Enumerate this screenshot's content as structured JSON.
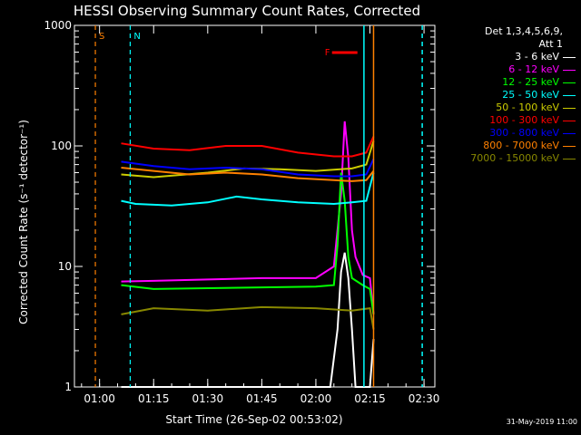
{
  "chart_data": {
    "type": "line",
    "title": "HESSI Observing Summary Count Rates, Corrected",
    "xlabel": "Start Time (26-Sep-02 00:53:02)",
    "ylabel": "Corrected Count Rate (s⁻¹ detector⁻¹)",
    "y_scale": "log",
    "ylim": [
      1,
      1000
    ],
    "y_ticks": [
      1,
      10,
      100,
      1000
    ],
    "y_tick_labels": [
      "1",
      "10",
      "100",
      "1000"
    ],
    "xlim": [
      "00:53:02",
      "02:33:00"
    ],
    "x_tick_labels": [
      "01:00",
      "01:15",
      "01:30",
      "01:45",
      "02:00",
      "02:15",
      "02:30"
    ],
    "legend_title_lines": [
      "Det 1,3,4,5,6,9,",
      "Att 1"
    ],
    "legend_placement": "right",
    "series": [
      {
        "name": "3 - 6 keV",
        "color": "#ffffff",
        "points": [
          [
            "01:06",
            1
          ],
          [
            "01:10",
            1
          ],
          [
            "01:20",
            1
          ],
          [
            "01:30",
            1
          ],
          [
            "01:40",
            1
          ],
          [
            "01:50",
            1
          ],
          [
            "02:00",
            1
          ],
          [
            "02:04",
            1
          ],
          [
            "02:06",
            3
          ],
          [
            "02:07",
            9
          ],
          [
            "02:08",
            13
          ],
          [
            "02:09",
            8
          ],
          [
            "02:10",
            3
          ],
          [
            "02:11",
            1
          ],
          [
            "02:15",
            1
          ],
          [
            "02:16",
            2.5
          ]
        ]
      },
      {
        "name": "6 - 12 keV",
        "color": "#ff00ff",
        "points": [
          [
            "01:06",
            7.5
          ],
          [
            "01:15",
            7.6
          ],
          [
            "01:30",
            7.8
          ],
          [
            "01:45",
            8
          ],
          [
            "02:00",
            8
          ],
          [
            "02:05",
            10
          ],
          [
            "02:07",
            40
          ],
          [
            "02:08",
            160
          ],
          [
            "02:09",
            80
          ],
          [
            "02:10",
            20
          ],
          [
            "02:11",
            12
          ],
          [
            "02:13",
            8.5
          ],
          [
            "02:15",
            8
          ],
          [
            "02:16",
            4
          ]
        ]
      },
      {
        "name": "12 - 25 keV",
        "color": "#00ff00",
        "points": [
          [
            "01:06",
            7
          ],
          [
            "01:15",
            6.5
          ],
          [
            "01:30",
            6.6
          ],
          [
            "01:45",
            6.7
          ],
          [
            "02:00",
            6.8
          ],
          [
            "02:05",
            7
          ],
          [
            "02:06",
            15
          ],
          [
            "02:07",
            60
          ],
          [
            "02:08",
            35
          ],
          [
            "02:09",
            12
          ],
          [
            "02:10",
            8
          ],
          [
            "02:13",
            7
          ],
          [
            "02:15",
            6.5
          ],
          [
            "02:16",
            4
          ]
        ]
      },
      {
        "name": "25 - 50 keV",
        "color": "#00ffff",
        "points": [
          [
            "01:06",
            35
          ],
          [
            "01:10",
            33
          ],
          [
            "01:20",
            32
          ],
          [
            "01:30",
            34
          ],
          [
            "01:38",
            38
          ],
          [
            "01:45",
            36
          ],
          [
            "01:55",
            34
          ],
          [
            "02:05",
            33
          ],
          [
            "02:10",
            34
          ],
          [
            "02:14",
            35
          ],
          [
            "02:16",
            60
          ]
        ]
      },
      {
        "name": "50 - 100 keV",
        "color": "#cccc00",
        "points": [
          [
            "01:06",
            58
          ],
          [
            "01:15",
            55
          ],
          [
            "01:30",
            60
          ],
          [
            "01:40",
            65
          ],
          [
            "01:50",
            64
          ],
          [
            "02:00",
            62
          ],
          [
            "02:10",
            65
          ],
          [
            "02:14",
            70
          ],
          [
            "02:16",
            110
          ]
        ]
      },
      {
        "name": "100 - 300 keV",
        "color": "#ff0000",
        "points": [
          [
            "01:06",
            105
          ],
          [
            "01:15",
            95
          ],
          [
            "01:25",
            92
          ],
          [
            "01:35",
            100
          ],
          [
            "01:45",
            100
          ],
          [
            "01:55",
            88
          ],
          [
            "02:05",
            82
          ],
          [
            "02:10",
            82
          ],
          [
            "02:14",
            88
          ],
          [
            "02:16",
            120
          ]
        ]
      },
      {
        "name": "300 - 800 keV",
        "color": "#0000ff",
        "points": [
          [
            "01:06",
            74
          ],
          [
            "01:15",
            68
          ],
          [
            "01:25",
            64
          ],
          [
            "01:35",
            66
          ],
          [
            "01:45",
            64
          ],
          [
            "01:55",
            58
          ],
          [
            "02:05",
            56
          ],
          [
            "02:10",
            56
          ],
          [
            "02:14",
            58
          ],
          [
            "02:16",
            78
          ]
        ]
      },
      {
        "name": "800 - 7000 keV",
        "color": "#ff8000",
        "points": [
          [
            "01:06",
            66
          ],
          [
            "01:15",
            62
          ],
          [
            "01:25",
            58
          ],
          [
            "01:35",
            60
          ],
          [
            "01:45",
            58
          ],
          [
            "01:55",
            54
          ],
          [
            "02:05",
            52
          ],
          [
            "02:10",
            51
          ],
          [
            "02:14",
            52
          ],
          [
            "02:16",
            62
          ]
        ]
      },
      {
        "name": "7000 - 15000 keV",
        "color": "#888800",
        "points": [
          [
            "01:06",
            4
          ],
          [
            "01:15",
            4.5
          ],
          [
            "01:30",
            4.3
          ],
          [
            "01:45",
            4.6
          ],
          [
            "02:00",
            4.5
          ],
          [
            "02:10",
            4.3
          ],
          [
            "02:15",
            4.5
          ],
          [
            "02:16",
            3
          ]
        ]
      }
    ],
    "annotations": [
      {
        "label": "S",
        "color": "#ff8000",
        "time": "00:58:50",
        "style": "dashed vertical"
      },
      {
        "label": "N",
        "color": "#00ffff",
        "time": "01:08:30",
        "style": "dashed vertical"
      },
      {
        "label": "F",
        "color": "#ff0000",
        "time": "02:08:00",
        "style": "horizontal bar"
      }
    ],
    "vertical_markers": [
      {
        "color": "#00ffff",
        "time": "02:13:20",
        "style": "solid"
      },
      {
        "color": "#ff8000",
        "time": "02:16:00",
        "style": "solid"
      },
      {
        "color": "#00ffff",
        "time": "02:29:30",
        "style": "dashed"
      }
    ]
  },
  "footer": {
    "date_stamp": "31-May-2019 11:00"
  }
}
